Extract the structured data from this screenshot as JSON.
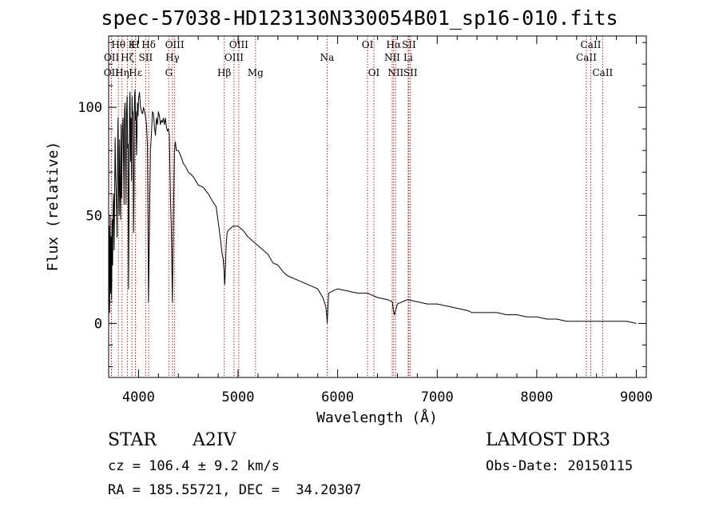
{
  "header": {
    "title": "spec-57038-HD123130N330054B01_sp16-010.fits"
  },
  "info": {
    "object_type": "STAR",
    "subclass": "A2IV",
    "survey": "LAMOST DR3",
    "cz": "cz = 106.4 ± 9.2 km/s",
    "obs_date": "Obs-Date: 20150115",
    "coords": "RA = 185.55721, DEC =  34.20307"
  },
  "chart_data": {
    "type": "line",
    "title": "spec-57038-HD123130N330054B01_sp16-010.fits",
    "xlabel": "Wavelength (Å)",
    "ylabel": "Flux (relative)",
    "xlim": [
      3700,
      9100
    ],
    "ylim": [
      -25,
      133
    ],
    "xticks": [
      4000,
      5000,
      6000,
      7000,
      8000,
      9000
    ],
    "xtick_labels": [
      "4000",
      "5000",
      "6000",
      "7000",
      "8000",
      "9000"
    ],
    "yticks": [
      0,
      50,
      100
    ],
    "ytick_labels": [
      "0",
      "50",
      "100"
    ],
    "grid": false,
    "series": [
      {
        "name": "flux",
        "x": [
          3700,
          3705,
          3710,
          3715,
          3720,
          3725,
          3730,
          3735,
          3740,
          3745,
          3750,
          3755,
          3760,
          3765,
          3770,
          3775,
          3780,
          3785,
          3790,
          3795,
          3800,
          3805,
          3810,
          3815,
          3820,
          3825,
          3830,
          3835,
          3840,
          3845,
          3850,
          3855,
          3860,
          3865,
          3870,
          3875,
          3880,
          3885,
          3890,
          3895,
          3900,
          3905,
          3910,
          3915,
          3920,
          3925,
          3930,
          3935,
          3940,
          3945,
          3950,
          3955,
          3960,
          3965,
          3970,
          3975,
          3980,
          3985,
          3990,
          3995,
          4000,
          4010,
          4020,
          4030,
          4040,
          4050,
          4060,
          4070,
          4080,
          4090,
          4100,
          4110,
          4120,
          4130,
          4140,
          4150,
          4160,
          4170,
          4180,
          4190,
          4200,
          4210,
          4220,
          4230,
          4240,
          4250,
          4260,
          4270,
          4280,
          4290,
          4300,
          4310,
          4320,
          4330,
          4340,
          4350,
          4360,
          4370,
          4380,
          4400,
          4420,
          4450,
          4480,
          4500,
          4550,
          4600,
          4650,
          4700,
          4750,
          4780,
          4800,
          4820,
          4840,
          4850,
          4860,
          4865,
          4870,
          4880,
          4890,
          4900,
          4950,
          5000,
          5050,
          5100,
          5150,
          5200,
          5250,
          5300,
          5350,
          5400,
          5450,
          5500,
          5600,
          5700,
          5800,
          5850,
          5880,
          5890,
          5895,
          5900,
          5910,
          5950,
          6000,
          6100,
          6200,
          6300,
          6350,
          6400,
          6500,
          6550,
          6560,
          6570,
          6600,
          6700,
          6800,
          6900,
          7000,
          7100,
          7200,
          7300,
          7350,
          7400,
          7500,
          7600,
          7700,
          7800,
          7900,
          8000,
          8100,
          8200,
          8300,
          8400,
          8500,
          8542,
          8600,
          8700,
          8800,
          8900,
          9000
        ],
        "y": [
          0,
          45,
          5,
          50,
          14,
          40,
          11,
          48,
          27,
          55,
          60,
          34,
          58,
          86,
          70,
          62,
          52,
          40,
          80,
          95,
          60,
          50,
          85,
          62,
          48,
          92,
          58,
          80,
          90,
          95,
          75,
          55,
          98,
          102,
          72,
          55,
          97,
          105,
          81,
          83,
          16,
          50,
          101,
          107,
          75,
          95,
          66,
          105,
          97,
          98,
          42,
          60,
          105,
          108,
          94,
          98,
          78,
          88,
          102,
          96,
          104,
          107,
          100,
          98,
          97,
          100,
          98,
          96,
          92,
          82,
          10,
          45,
          80,
          88,
          98,
          97,
          91,
          87,
          95,
          92,
          98,
          96,
          92,
          94,
          93,
          95,
          92,
          95,
          91,
          89,
          90,
          87,
          60,
          42,
          10,
          45,
          80,
          84,
          80,
          80,
          78,
          74,
          72,
          70,
          68,
          64,
          63,
          60,
          56,
          54,
          47,
          40,
          32,
          30,
          24,
          18,
          22,
          36,
          42,
          43,
          45,
          45,
          43,
          40,
          38,
          36,
          34,
          32,
          28,
          27,
          24,
          22,
          20,
          18,
          16,
          12,
          8,
          4,
          0,
          5,
          14,
          15,
          16,
          15,
          14,
          14,
          13,
          12,
          11,
          10,
          6,
          4,
          9,
          11,
          10,
          9,
          9,
          8,
          7,
          6,
          5,
          5,
          5,
          5,
          4,
          4,
          3,
          3,
          2,
          2,
          1,
          1,
          1,
          1,
          1,
          1,
          1,
          1,
          0
        ]
      }
    ],
    "spectral_lines": [
      {
        "label": "OII",
        "wavelength": 3727,
        "row": 2
      },
      {
        "label": "OII",
        "wavelength": 3729,
        "row": 1
      },
      {
        "label": "Hθ",
        "wavelength": 3798,
        "row": 0
      },
      {
        "label": "Hη",
        "wavelength": 3835,
        "row": 2
      },
      {
        "label": "Hζ",
        "wavelength": 3889,
        "row": 1
      },
      {
        "label": "Hε",
        "wavelength": 3970,
        "row": 2
      },
      {
        "label": "K",
        "wavelength": 3934,
        "row": 0
      },
      {
        "label": "H",
        "wavelength": 3969,
        "row": 0
      },
      {
        "label": "SII",
        "wavelength": 4072,
        "row": 1
      },
      {
        "label": "Hδ",
        "wavelength": 4102,
        "row": 0
      },
      {
        "label": "G",
        "wavelength": 4305,
        "row": 2
      },
      {
        "label": "Hγ",
        "wavelength": 4341,
        "row": 1
      },
      {
        "label": "OIII",
        "wavelength": 4363,
        "row": 0
      },
      {
        "label": "Hβ",
        "wavelength": 4861,
        "row": 2
      },
      {
        "label": "OIII",
        "wavelength": 4959,
        "row": 1
      },
      {
        "label": "OIII",
        "wavelength": 5007,
        "row": 0
      },
      {
        "label": "Mg",
        "wavelength": 5175,
        "row": 2
      },
      {
        "label": "Na",
        "wavelength": 5894,
        "row": 1
      },
      {
        "label": "OI",
        "wavelength": 6300,
        "row": 0
      },
      {
        "label": "OI",
        "wavelength": 6364,
        "row": 2
      },
      {
        "label": "NII",
        "wavelength": 6548,
        "row": 1
      },
      {
        "label": "Hα",
        "wavelength": 6563,
        "row": 0
      },
      {
        "label": "NII",
        "wavelength": 6583,
        "row": 2
      },
      {
        "label": "Li",
        "wavelength": 6708,
        "row": 1
      },
      {
        "label": "SII",
        "wavelength": 6716,
        "row": 0
      },
      {
        "label": "SII",
        "wavelength": 6731,
        "row": 2
      },
      {
        "label": "CaII",
        "wavelength": 8498,
        "row": 1
      },
      {
        "label": "CaII",
        "wavelength": 8542,
        "row": 0
      },
      {
        "label": "CaII",
        "wavelength": 8662,
        "row": 2
      }
    ],
    "line_color": "#000000",
    "marker_color": "#b22222"
  }
}
